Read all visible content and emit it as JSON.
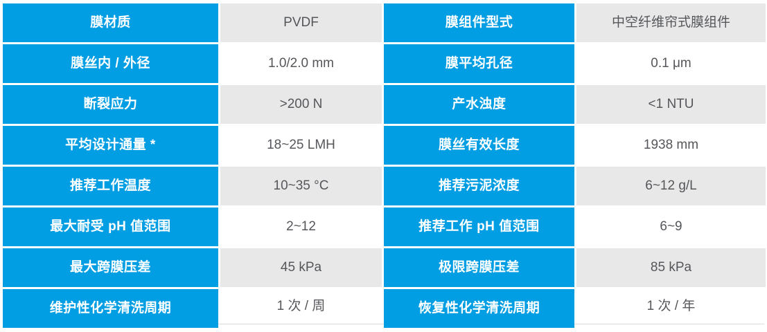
{
  "table": {
    "name": "membrane-specification-table",
    "columns": [
      "label1",
      "value1",
      "label2",
      "value2"
    ],
    "rows": [
      {
        "label1": "膜材质",
        "value1": "PVDF",
        "label2": "膜组件型式",
        "value2": "中空纤维帘式膜组件"
      },
      {
        "label1": "膜丝内 / 外径",
        "value1": "1.0/2.0 mm",
        "label2": "膜平均孔径",
        "value2": "0.1 μm"
      },
      {
        "label1": "断裂应力",
        "value1": ">200 N",
        "label2": "产水浊度",
        "value2": "<1 NTU"
      },
      {
        "label1": "平均设计通量 *",
        "value1": "18~25 LMH",
        "label2": "膜丝有效长度",
        "value2": "1938 mm"
      },
      {
        "label1": "推荐工作温度",
        "value1": "10~35 °C",
        "label2": "推荐污泥浓度",
        "value2": "6~12 g/L"
      },
      {
        "label1": "最大耐受 pH 值范围",
        "value1": "2~12",
        "label2": "推荐工作 pH 值范围",
        "value2": "6~9"
      },
      {
        "label1": "最大跨膜压差",
        "value1": "45 kPa",
        "label2": "极限跨膜压差",
        "value2": "85 kPa"
      },
      {
        "label1": "维护性化学清洗周期",
        "value1": "1 次 / 周",
        "label2": "恢复性化学清洗周期",
        "value2": "1 次 / 年"
      }
    ],
    "colors": {
      "label_bg": "#029EE3",
      "label_text": "#FFFFFF",
      "value_bg_odd": "#E8E8E8",
      "value_bg_even": "#FFFFFF",
      "value_text": "#55565A",
      "hairline": "#DCDCDC",
      "page_bg": "#FFFFFF"
    }
  }
}
